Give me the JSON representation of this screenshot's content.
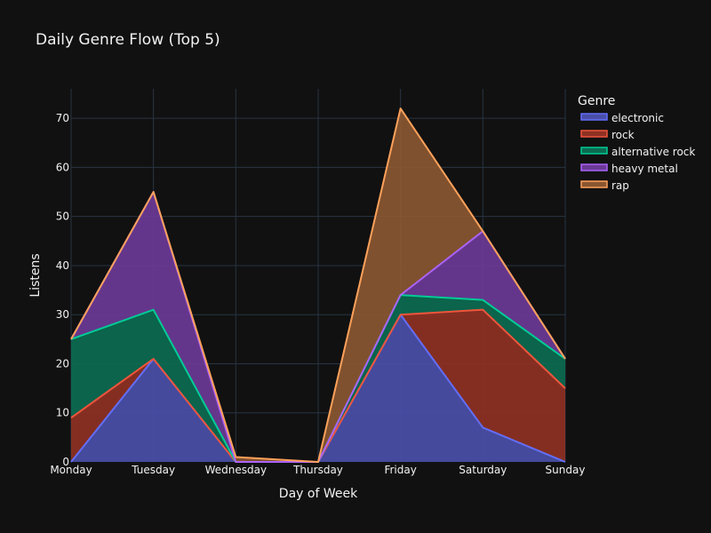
{
  "chart_data": {
    "type": "area",
    "stacked": true,
    "title": "Daily Genre Flow (Top 5)",
    "xlabel": "Day of Week",
    "ylabel": "Listens",
    "categories": [
      "Monday",
      "Tuesday",
      "Wednesday",
      "Thursday",
      "Friday",
      "Saturday",
      "Sunday"
    ],
    "ylim": [
      0,
      76
    ],
    "yticks": [
      0,
      10,
      20,
      30,
      40,
      50,
      60,
      70
    ],
    "grid": true,
    "legend": {
      "title": "Genre",
      "placement": "top-right"
    },
    "series": [
      {
        "name": "electronic",
        "values": [
          0,
          21,
          0,
          0,
          30,
          7,
          0
        ],
        "fill": "#4a4fa8",
        "line": "#636efa"
      },
      {
        "name": "rock",
        "values": [
          9,
          0,
          0,
          0,
          0,
          24,
          15
        ],
        "fill": "#8e3124",
        "line": "#ef553b"
      },
      {
        "name": "alternative rock",
        "values": [
          16,
          10,
          0,
          0,
          4,
          2,
          6
        ],
        "fill": "#0b6b50",
        "line": "#00cc96"
      },
      {
        "name": "heavy metal",
        "values": [
          0,
          24,
          0,
          0,
          0,
          14,
          0
        ],
        "fill": "#6b3a96",
        "line": "#ab63fa"
      },
      {
        "name": "rap",
        "values": [
          0,
          0,
          1,
          0,
          38,
          0,
          0
        ],
        "fill": "#8a5731",
        "line": "#ffa15a"
      }
    ]
  }
}
